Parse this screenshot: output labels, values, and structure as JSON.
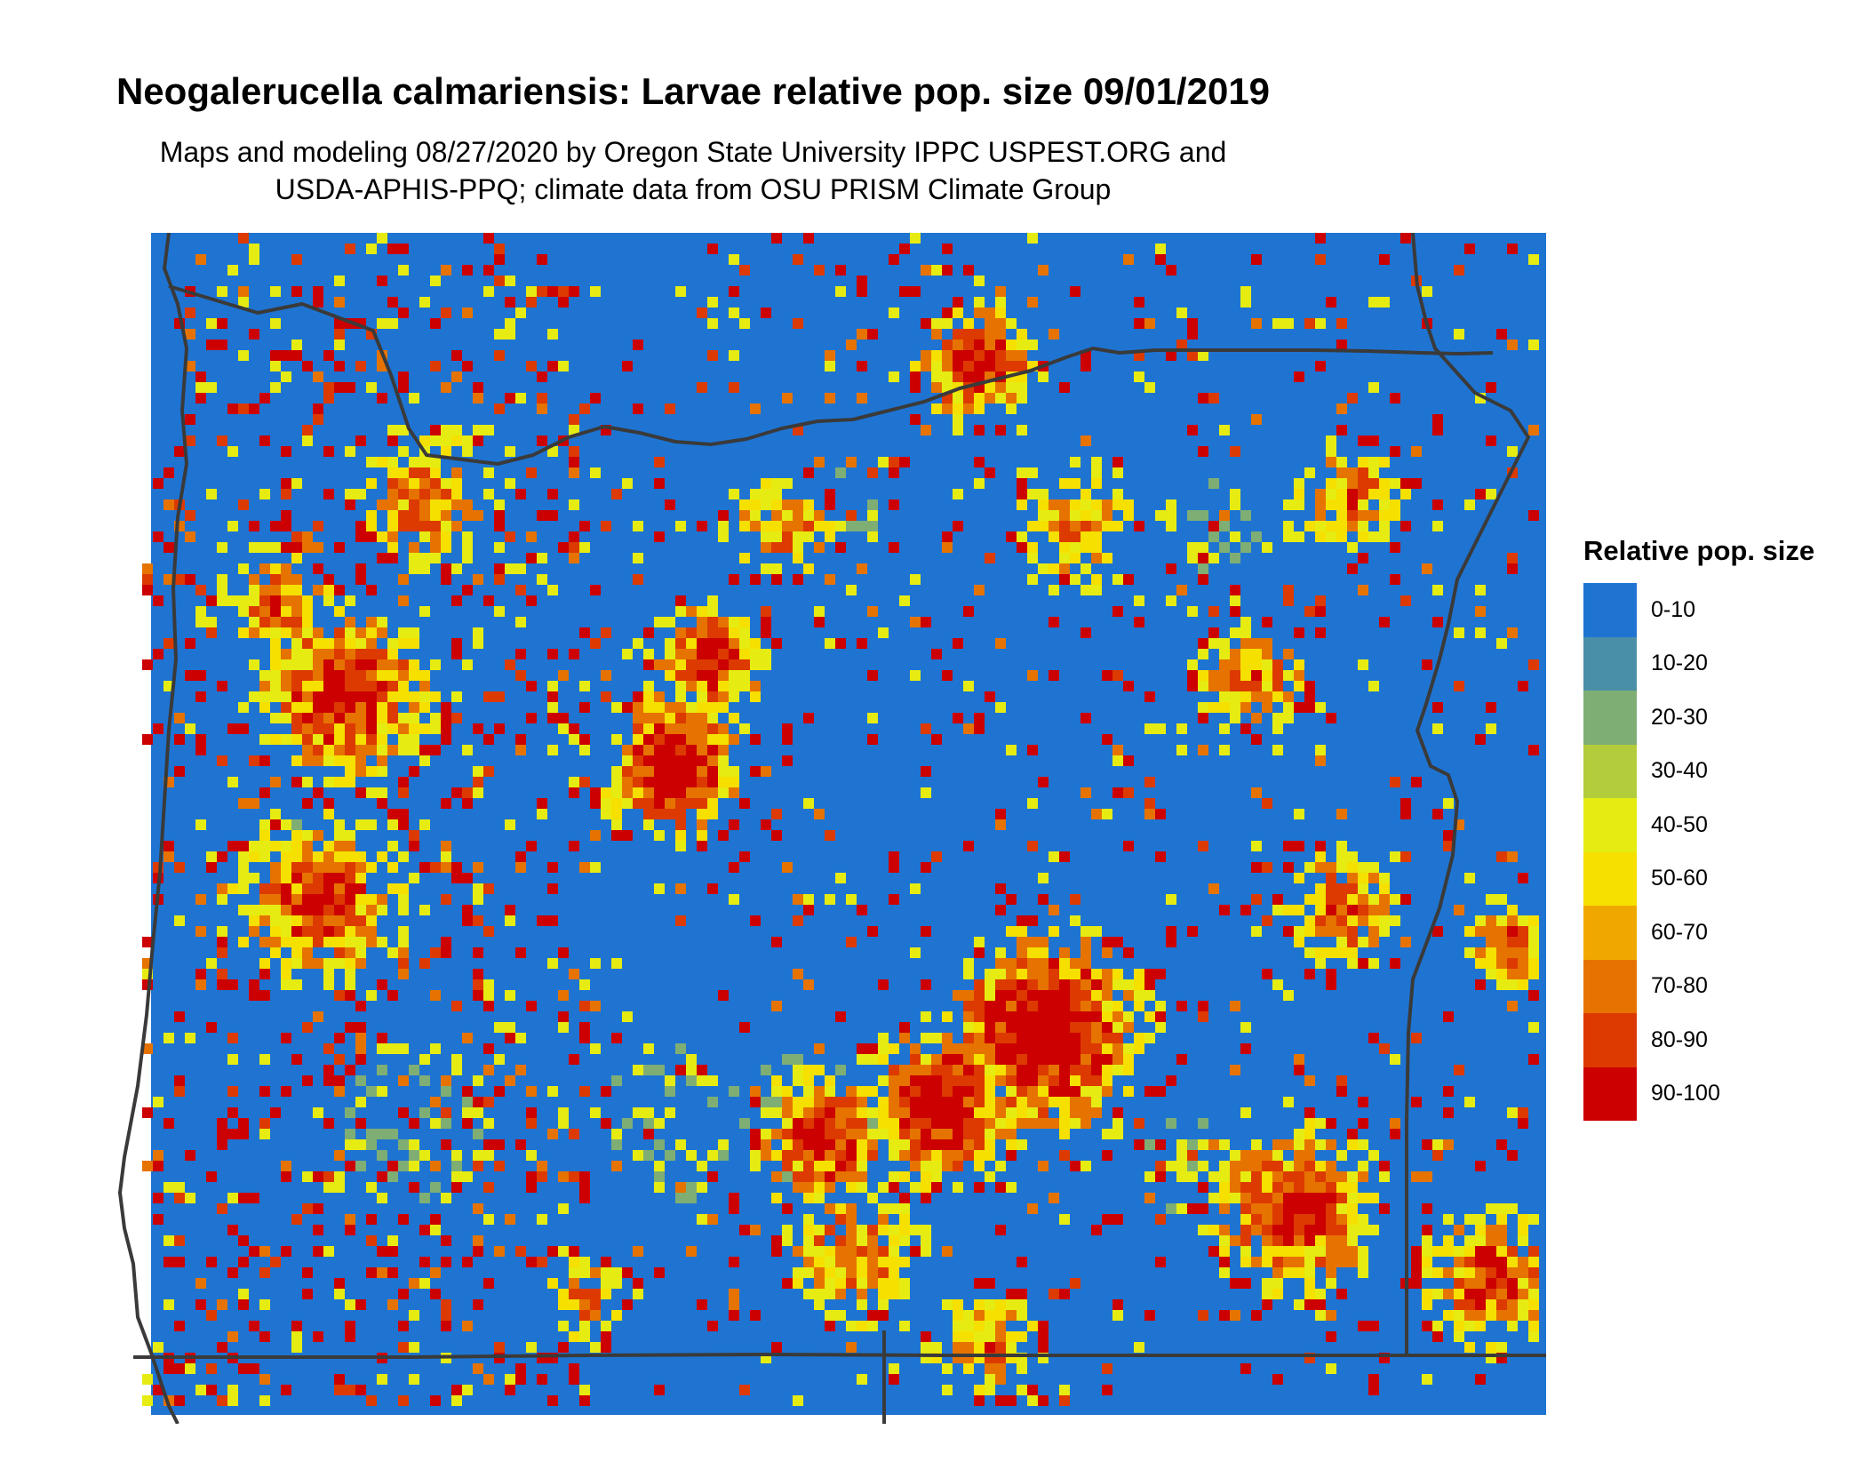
{
  "title": "Neogalerucella calmariensis: Larvae relative pop. size 09/01/2019",
  "subtitle_line1": "Maps and modeling 08/27/2020 by Oregon State University IPPC USPEST.ORG and",
  "subtitle_line2": "USDA-APHIS-PPQ; climate data from OSU PRISM Climate Group",
  "legend": {
    "title": "Relative pop. size",
    "items": [
      {
        "label": "0-10",
        "color": "#1f74d2"
      },
      {
        "label": "10-20",
        "color": "#4a8fa8"
      },
      {
        "label": "20-30",
        "color": "#7fae74"
      },
      {
        "label": "30-40",
        "color": "#b2cc3c"
      },
      {
        "label": "40-50",
        "color": "#e6ec12"
      },
      {
        "label": "50-60",
        "color": "#f5e000"
      },
      {
        "label": "60-70",
        "color": "#f0a800"
      },
      {
        "label": "70-80",
        "color": "#e67300"
      },
      {
        "label": "80-90",
        "color": "#dc3a00"
      },
      {
        "label": "90-100",
        "color": "#cc0000"
      }
    ]
  },
  "map": {
    "background_color": "#1f74d2",
    "border_color": "#3a3a3a"
  }
}
